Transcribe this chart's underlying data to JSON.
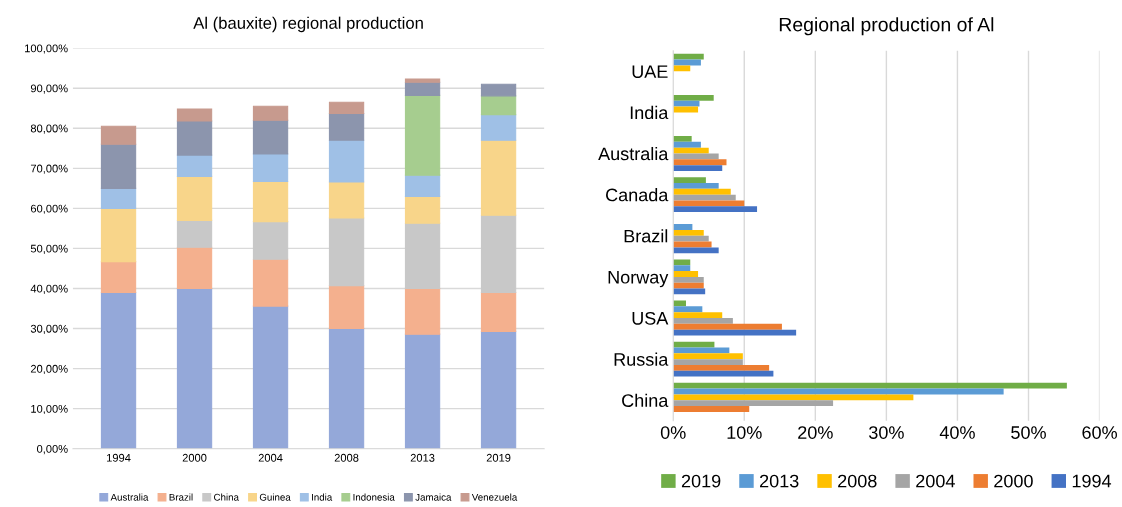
{
  "chart_data": [
    {
      "type": "bar",
      "title": "Al (bauxite) regional production",
      "stacked": true,
      "categories": [
        "1994",
        "2000",
        "2004",
        "2008",
        "2013",
        "2019"
      ],
      "series": [
        {
          "name": "Australia",
          "color": "#94a8d9",
          "values": [
            39,
            40,
            35.6,
            30,
            28.6,
            29.3
          ]
        },
        {
          "name": "Brazil",
          "color": "#f4b08e",
          "values": [
            7.7,
            10.3,
            11.7,
            10.7,
            11.4,
            9.7
          ]
        },
        {
          "name": "China",
          "color": "#c8c8c8",
          "values": [
            null,
            6.7,
            9.4,
            16.9,
            16.3,
            19.3
          ]
        },
        {
          "name": "Guinea",
          "color": "#f8d58a",
          "values": [
            13.3,
            11,
            10,
            9,
            6.7,
            18.7
          ]
        },
        {
          "name": "India",
          "color": "#9fc0e6",
          "values": [
            5,
            5.3,
            6.9,
            10.4,
            5.3,
            6.4
          ]
        },
        {
          "name": "Indonesia",
          "color": "#a6cd8f",
          "values": [
            null,
            null,
            null,
            null,
            19.9,
            4.7
          ]
        },
        {
          "name": "Jamaica",
          "color": "#8c95ad",
          "values": [
            11,
            8.5,
            8.4,
            6.7,
            3.3,
            2.9
          ]
        },
        {
          "name": "Venezuela",
          "color": "#c79a8e",
          "values": [
            4.5,
            3,
            3.5,
            2.8,
            0.8,
            null
          ]
        }
      ],
      "ylim": [
        0,
        100
      ],
      "yticks": [
        {
          "value": 0,
          "label": "0,00%"
        },
        {
          "value": 10,
          "label": "10,00%"
        },
        {
          "value": 20,
          "label": "20,00%"
        },
        {
          "value": 30,
          "label": "30,00%"
        },
        {
          "value": 40,
          "label": "40,00%"
        },
        {
          "value": 50,
          "label": "50,00%"
        },
        {
          "value": 60,
          "label": "60,00%"
        },
        {
          "value": 70,
          "label": "70,00%"
        },
        {
          "value": 80,
          "label": "80,00%"
        },
        {
          "value": 90,
          "label": "90,00%"
        },
        {
          "value": 100,
          "label": "100,00%"
        }
      ],
      "grid": "y",
      "legend": "bottom"
    },
    {
      "type": "bar",
      "title": "Regional production of Al",
      "orientation": "horizontal",
      "categories": [
        "UAE",
        "India",
        "Australia",
        "Canada",
        "Brazil",
        "Norway",
        "USA",
        "Russia",
        "China"
      ],
      "series": [
        {
          "name": "2019",
          "color": "#70ad47",
          "values": [
            4.3,
            5.7,
            2.6,
            4.6,
            null,
            2.4,
            1.8,
            5.8,
            55.4
          ]
        },
        {
          "name": "2013",
          "color": "#5b9bd5",
          "values": [
            3.9,
            3.7,
            3.9,
            6.4,
            2.7,
            2.4,
            4.1,
            7.9,
            46.5
          ]
        },
        {
          "name": "2008",
          "color": "#ffc000",
          "values": [
            2.4,
            3.5,
            5.0,
            8.1,
            4.3,
            3.5,
            6.9,
            9.8,
            33.8
          ]
        },
        {
          "name": "2004",
          "color": "#a5a5a5",
          "values": [
            null,
            null,
            6.4,
            8.8,
            5.0,
            4.3,
            8.4,
            9.8,
            22.5
          ]
        },
        {
          "name": "2000",
          "color": "#ed7d31",
          "values": [
            null,
            null,
            7.5,
            10.0,
            5.4,
            4.3,
            15.3,
            13.5,
            10.7
          ]
        },
        {
          "name": "1994",
          "color": "#4472c4",
          "values": [
            null,
            null,
            6.9,
            11.8,
            6.4,
            4.5,
            17.3,
            14.1,
            null
          ]
        }
      ],
      "xlim": [
        0,
        60
      ],
      "xticks": [
        {
          "value": 0,
          "label": "0%"
        },
        {
          "value": 10,
          "label": "10%"
        },
        {
          "value": 20,
          "label": "20%"
        },
        {
          "value": 30,
          "label": "30%"
        },
        {
          "value": 40,
          "label": "40%"
        },
        {
          "value": 50,
          "label": "50%"
        },
        {
          "value": 60,
          "label": "60%"
        }
      ],
      "grid": "x",
      "legend": "bottom"
    }
  ]
}
